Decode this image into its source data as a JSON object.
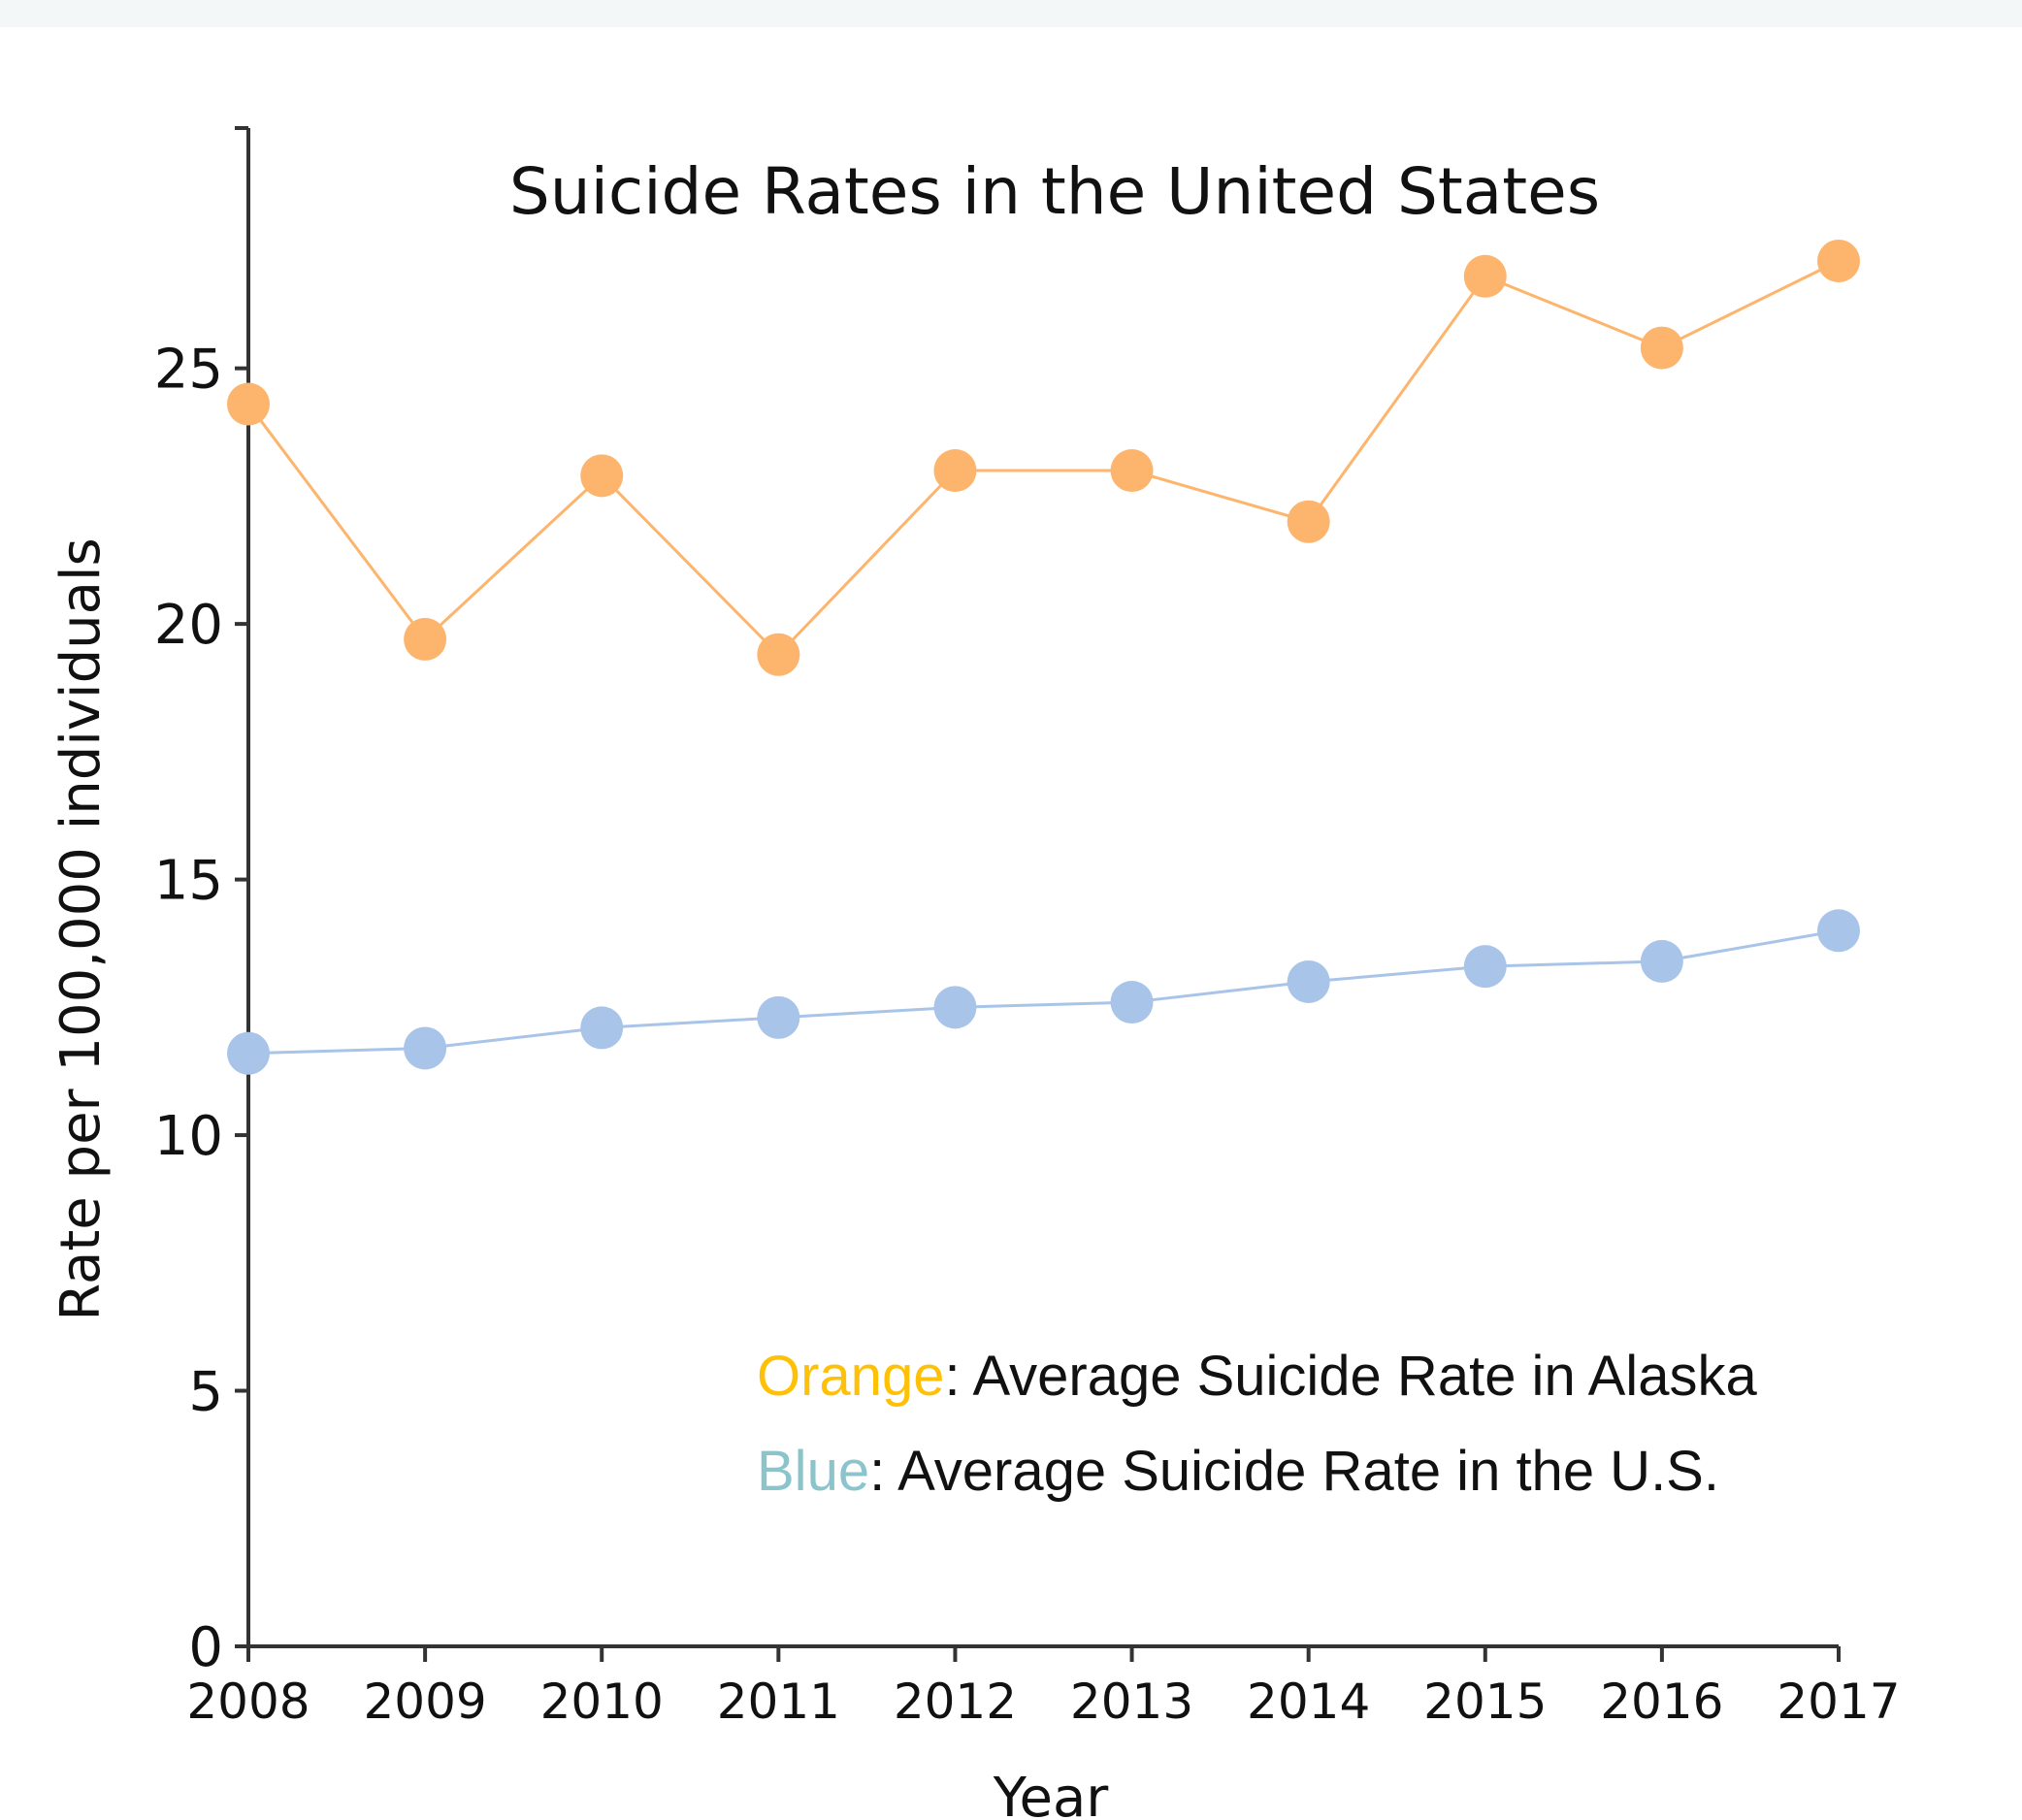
{
  "chart_data": {
    "type": "line",
    "title": "Suicide Rates in the United States",
    "xlabel": "Year",
    "ylabel": "Rate per 100,000 individuals",
    "x": [
      "2008",
      "2009",
      "2010",
      "2011",
      "2012",
      "2013",
      "2014",
      "2015",
      "2016",
      "2017"
    ],
    "yticks": [
      "0",
      "5",
      "10",
      "15",
      "20",
      "25"
    ],
    "ylim": [
      0,
      29.7
    ],
    "grid": false,
    "series": [
      {
        "color": "#fdb56e",
        "values": [
          24.3,
          19.7,
          22.9,
          19.4,
          23.0,
          23.0,
          22.0,
          26.8,
          25.4,
          27.1
        ]
      },
      {
        "color": "#a9c4e9",
        "values": [
          11.6,
          11.7,
          12.1,
          12.3,
          12.5,
          12.6,
          13.0,
          13.3,
          13.4,
          14.0
        ]
      }
    ]
  },
  "legend": {
    "line1": {
      "key": "Orange",
      "key_color": "#ffc107",
      "text": ": Average Suicide Rate in Alaska"
    },
    "line2": {
      "key": "Blue",
      "key_color": "#8cc4cc",
      "text": ": Average Suicide Rate in the U.S."
    }
  }
}
